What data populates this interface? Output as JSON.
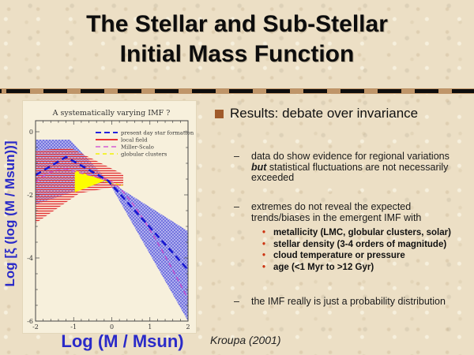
{
  "header": {
    "title_line1": "The Stellar and Sub-Stellar",
    "title_line2": "Initial Mass Function"
  },
  "markers": {
    "dash": "–",
    "dot": "•"
  },
  "plot": {
    "title": "A systematically varying IMF ?",
    "xlabel": "Log (M / Msun)",
    "ylabel": "Log [ξ (log (M / Msun))]",
    "x_ticks": [
      "-2",
      "-1",
      "0",
      "1",
      "2"
    ],
    "y_ticks": [
      "0",
      "-2",
      "-4",
      "-6"
    ],
    "legend": [
      {
        "label": "present day star formation",
        "color": "#2222dd",
        "style": "dashed"
      },
      {
        "label": "local field",
        "color": "#ee3333",
        "style": "solid"
      },
      {
        "label": "Miller-Scalo",
        "color": "#d45cd4",
        "style": "dashed"
      },
      {
        "label": "globular clusters",
        "color": "#f2f200",
        "style": "dashed"
      }
    ],
    "accent_label_color": "#2a2ac8"
  },
  "chart_data": {
    "type": "area",
    "title": "A systematically varying IMF ?",
    "xlabel": "Log (M / Msun)",
    "ylabel": "Log [ξ (log (M / Msun))]",
    "xlim": [
      -2,
      2
    ],
    "ylim": [
      -6,
      0.4
    ],
    "x_ticks": [
      -2,
      -1,
      0,
      1,
      2
    ],
    "y_ticks": [
      0,
      -2,
      -4,
      -6
    ],
    "grid": false,
    "legend_position": "upper right",
    "series": [
      {
        "name": "present day star formation",
        "type": "line",
        "style": "blue thick dashed",
        "points": [
          [
            -2,
            -1.38
          ],
          [
            -1.2,
            -0.8
          ],
          [
            -0.1,
            -1.55
          ],
          [
            2,
            -4.38
          ]
        ]
      },
      {
        "name": "Miller-Scalo",
        "type": "line",
        "style": "magenta dashed lognormal curve",
        "points": [
          [
            -2,
            -1.6
          ],
          [
            -1.3,
            -1.2
          ],
          [
            -0.1,
            -1.5
          ],
          [
            1,
            -3.2
          ],
          [
            2,
            -5.3
          ]
        ]
      },
      {
        "name": "present day star formation uncertainty band",
        "type": "band",
        "style": "blue crosshatched",
        "upper_edge": [
          [
            -2,
            -0.25
          ],
          [
            -1.1,
            -0.25
          ],
          [
            -0.1,
            -1.55
          ],
          [
            2,
            -3.15
          ]
        ],
        "lower_edge": [
          [
            -2,
            -2.3
          ],
          [
            -0.1,
            -1.55
          ],
          [
            2,
            -6
          ]
        ]
      },
      {
        "name": "local field",
        "type": "band",
        "style": "red horizontal-hatched",
        "upper_edge": [
          [
            -2,
            -0.6
          ],
          [
            -1.1,
            -0.5
          ],
          [
            0.3,
            -1.35
          ]
        ],
        "lower_edge": [
          [
            -2,
            -2.9
          ],
          [
            -0.85,
            -1.95
          ],
          [
            0.3,
            -1.7
          ]
        ]
      }
    ],
    "annotations": [
      {
        "type": "arrow",
        "style": "solid yellow right-pointing triangle (globular clusters)",
        "vertices": [
          [
            -0.97,
            -1.22
          ],
          [
            -0.97,
            -1.92
          ],
          [
            -0.18,
            -1.55
          ]
        ]
      }
    ]
  },
  "content": {
    "heading": "Results: debate over invariance",
    "sub1": {
      "pre": "data do show evidence for regional variations ",
      "bold": "but",
      "post": " statistical fluctuations are not necessarily exceeded"
    },
    "sub2": "extremes do not reveal the expected trends/biases in the emergent IMF with",
    "red_items": [
      "metallicity (LMC, globular clusters, solar)",
      "stellar density (3-4 orders of magnitude)",
      "cloud temperature or pressure",
      "age (<1 Myr to >12 Gyr)"
    ],
    "sub3": "the IMF really is just a probability distribution",
    "credit": "Kroupa (2001)",
    "heading_bullet_color": "#a05a2a",
    "red_bullet_color": "#cc3311"
  }
}
